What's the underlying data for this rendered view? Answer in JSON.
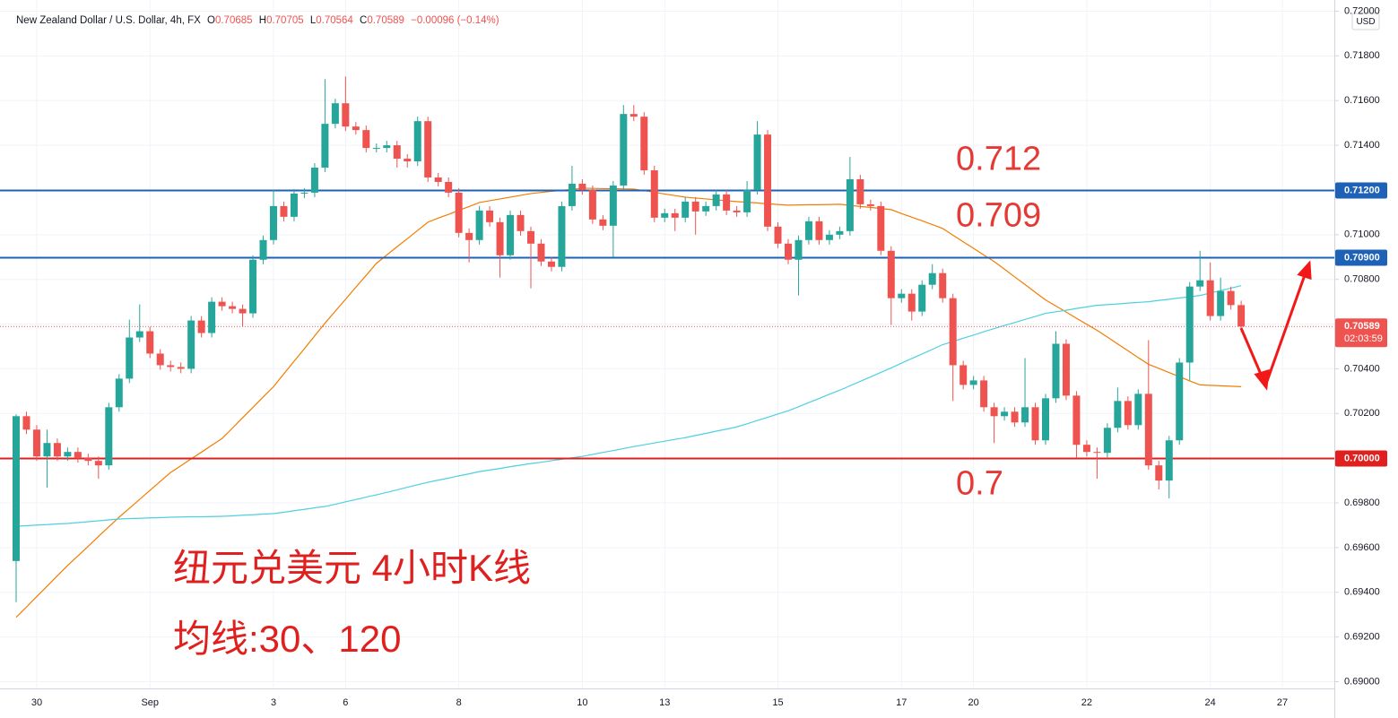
{
  "chart_data": {
    "type": "candlestick",
    "title": "New Zealand Dollar / U.S. Dollar, 4h, FX",
    "legend_values": [
      {
        "label": "O",
        "value": 0.70685
      },
      {
        "label": "H",
        "value": 0.70705
      },
      {
        "label": "L",
        "value": 0.70564
      },
      {
        "label": "C",
        "value": 0.70589
      }
    ],
    "change_label": "−0.00096 (−0.14%)",
    "currency": "USD",
    "countdown": "02:03:59",
    "up_color": "#26a69a",
    "down_color": "#ef5350",
    "grid": true,
    "ylim": [
      0.6897,
      0.7205
    ],
    "yticks": [
      {
        "value": 0.72,
        "label": "0.72000"
      },
      {
        "value": 0.718,
        "label": "0.71800"
      },
      {
        "value": 0.716,
        "label": "0.71600"
      },
      {
        "value": 0.714,
        "label": "0.71400"
      },
      {
        "value": 0.712,
        "label": "0.71200"
      },
      {
        "value": 0.71,
        "label": "0.71000"
      },
      {
        "value": 0.708,
        "label": "0.70800"
      },
      {
        "value": 0.706,
        "label": "0.70600"
      },
      {
        "value": 0.704,
        "label": "0.70400"
      },
      {
        "value": 0.702,
        "label": "0.70200"
      },
      {
        "value": 0.7,
        "label": "0.70000"
      },
      {
        "value": 0.698,
        "label": "0.69800"
      },
      {
        "value": 0.696,
        "label": "0.69600"
      },
      {
        "value": 0.694,
        "label": "0.69400"
      },
      {
        "value": 0.692,
        "label": "0.69200"
      },
      {
        "value": 0.69,
        "label": "0.69000"
      }
    ],
    "levels": [
      {
        "value": 0.712,
        "label": "0.71200",
        "annotation": "0.712",
        "color": "#1e62b8"
      },
      {
        "value": 0.709,
        "label": "0.70900",
        "annotation": "0.709",
        "color": "#1e62b8"
      },
      {
        "value": 0.7,
        "label": "0.70000",
        "annotation": "0.7",
        "color": "#e01f1f"
      }
    ],
    "annotations": [
      "纽元兑美元 4小时K线",
      "均线:30、120"
    ],
    "categories": [
      null,
      null,
      "30",
      null,
      null,
      null,
      null,
      null,
      null,
      null,
      null,
      null,
      null,
      "Sep",
      null,
      null,
      null,
      null,
      null,
      null,
      null,
      null,
      null,
      null,
      null,
      "3",
      null,
      null,
      null,
      null,
      null,
      null,
      "6",
      null,
      null,
      null,
      null,
      null,
      null,
      null,
      null,
      null,
      null,
      "8",
      null,
      null,
      null,
      null,
      null,
      null,
      null,
      null,
      null,
      null,
      null,
      "10",
      null,
      null,
      null,
      null,
      null,
      null,
      null,
      "13",
      null,
      null,
      null,
      null,
      null,
      null,
      null,
      null,
      null,
      null,
      "15",
      null,
      null,
      null,
      null,
      null,
      null,
      null,
      null,
      null,
      null,
      null,
      "17",
      null,
      null,
      null,
      null,
      null,
      null,
      "20",
      null,
      null,
      null,
      null,
      null,
      null,
      null,
      null,
      null,
      null,
      "22",
      null,
      null,
      null,
      null,
      null,
      null,
      null,
      null,
      null,
      null,
      null,
      "24",
      null,
      null,
      null,
      null,
      null,
      null,
      "27",
      null,
      null,
      null,
      null
    ],
    "open": [
      0.6954,
      0.70188,
      0.70128,
      0.70008,
      0.70068,
      0.70008,
      0.70028,
      0.7,
      0.69988,
      0.69968,
      0.70228,
      0.70356,
      0.7054,
      0.70568,
      0.70468,
      0.70416,
      0.70408,
      0.704,
      0.70616,
      0.7056,
      0.707,
      0.7068,
      0.70668,
      0.70648,
      0.70888,
      0.70976,
      0.71128,
      0.7108,
      0.71184,
      0.71188,
      0.713,
      0.71496,
      0.71588,
      0.71484,
      0.71468,
      0.71388,
      0.71388,
      0.714,
      0.7134,
      0.71328,
      0.71508,
      0.71256,
      0.71236,
      0.71188,
      0.71008,
      0.70976,
      0.71108,
      0.71056,
      0.70908,
      0.71088,
      0.71016,
      0.7096,
      0.7088,
      0.70856,
      0.71128,
      0.71228,
      0.712,
      0.71068,
      0.7104,
      0.7122,
      0.7154,
      0.71528,
      0.71288,
      0.71076,
      0.71096,
      0.71076,
      0.71148,
      0.71104,
      0.71128,
      0.7118,
      0.71108,
      0.711,
      0.712,
      0.71448,
      0.71036,
      0.7096,
      0.70888,
      0.70976,
      0.7106,
      0.70976,
      0.71,
      0.71016,
      0.71248,
      0.71136,
      0.71128,
      0.70928,
      0.70716,
      0.70736,
      0.70656,
      0.70776,
      0.70828,
      0.70716,
      0.70416,
      0.70328,
      0.70348,
      0.70228,
      0.70188,
      0.70208,
      0.7016,
      0.70228,
      0.7008,
      0.70268,
      0.70512,
      0.7028,
      0.7006,
      0.70028,
      0.70024,
      0.70136,
      0.70256,
      0.70148,
      0.70288,
      0.69968,
      0.699,
      0.7008,
      0.70428,
      0.70768,
      0.70796,
      0.70636,
      0.70748,
      0.70685,
      null,
      null,
      null,
      null,
      null,
      null,
      null,
      null
    ],
    "high": [
      0.70196,
      0.70208,
      0.70148,
      0.70128,
      0.70088,
      0.70048,
      0.70048,
      0.7002,
      0.70008,
      0.70248,
      0.70376,
      0.7062,
      0.70688,
      0.70588,
      0.70488,
      0.70436,
      0.70428,
      0.70636,
      0.70636,
      0.7072,
      0.7072,
      0.707,
      0.70688,
      0.70908,
      0.70996,
      0.712,
      0.71148,
      0.71204,
      0.71208,
      0.7132,
      0.71696,
      0.71608,
      0.71708,
      0.71504,
      0.71488,
      0.71408,
      0.7142,
      0.7142,
      0.7136,
      0.71528,
      0.71528,
      0.71276,
      0.71256,
      0.71208,
      0.71028,
      0.71128,
      0.71128,
      0.71076,
      0.71108,
      0.71108,
      0.71036,
      0.7098,
      0.709,
      0.71148,
      0.71308,
      0.71248,
      0.7122,
      0.71088,
      0.7124,
      0.7158,
      0.7158,
      0.71548,
      0.71308,
      0.71116,
      0.71116,
      0.71168,
      0.71168,
      0.71148,
      0.712,
      0.712,
      0.71128,
      0.7124,
      0.71508,
      0.71468,
      0.71056,
      0.7098,
      0.70996,
      0.7108,
      0.7108,
      0.7102,
      0.71036,
      0.71348,
      0.71268,
      0.71156,
      0.71148,
      0.70948,
      0.70756,
      0.70756,
      0.70796,
      0.70868,
      0.70848,
      0.70736,
      0.70436,
      0.70368,
      0.70368,
      0.70248,
      0.70228,
      0.70228,
      0.70448,
      0.70248,
      0.70288,
      0.70568,
      0.70532,
      0.703,
      0.7008,
      0.70048,
      0.70156,
      0.70316,
      0.70276,
      0.70308,
      0.70528,
      0.69988,
      0.701,
      0.70448,
      0.70788,
      0.70928,
      0.70876,
      0.70808,
      0.70768,
      0.70705,
      null,
      null,
      null,
      null,
      null,
      null,
      null,
      null
    ],
    "low": [
      0.69356,
      0.70108,
      0.69988,
      0.69868,
      0.69988,
      0.69988,
      0.6998,
      0.69968,
      0.69908,
      0.69948,
      0.70208,
      0.70336,
      0.7052,
      0.70448,
      0.70396,
      0.70388,
      0.7038,
      0.7038,
      0.7054,
      0.7054,
      0.7066,
      0.70648,
      0.70588,
      0.70628,
      0.70868,
      0.70956,
      0.7106,
      0.7106,
      0.71164,
      0.71168,
      0.7128,
      0.71476,
      0.71464,
      0.71448,
      0.71368,
      0.71368,
      0.71368,
      0.713,
      0.713,
      0.71308,
      0.71236,
      0.71216,
      0.71168,
      0.70988,
      0.70876,
      0.70956,
      0.71036,
      0.70808,
      0.70888,
      0.70996,
      0.7076,
      0.7086,
      0.70836,
      0.70836,
      0.71108,
      0.7118,
      0.71048,
      0.7102,
      0.709,
      0.712,
      0.71508,
      0.71268,
      0.71056,
      0.71056,
      0.71016,
      0.71056,
      0.71,
      0.71084,
      0.71108,
      0.71088,
      0.7108,
      0.7108,
      0.7118,
      0.71016,
      0.7094,
      0.70868,
      0.70728,
      0.70956,
      0.70956,
      0.70956,
      0.7098,
      0.70996,
      0.71116,
      0.71108,
      0.70908,
      0.70596,
      0.70696,
      0.70616,
      0.70636,
      0.70756,
      0.70696,
      0.70256,
      0.70308,
      0.70308,
      0.70208,
      0.70068,
      0.70168,
      0.7014,
      0.7014,
      0.7006,
      0.7006,
      0.70248,
      0.7026,
      0.7,
      0.70008,
      0.69908,
      0.70004,
      0.70116,
      0.70128,
      0.70128,
      0.69948,
      0.6986,
      0.6982,
      0.7006,
      0.70348,
      0.70748,
      0.70616,
      0.70616,
      0.70665,
      0.70564,
      null,
      null,
      null,
      null,
      null,
      null,
      null,
      null
    ],
    "close": [
      0.70188,
      0.70128,
      0.70008,
      0.70068,
      0.70008,
      0.70028,
      0.7,
      0.69988,
      0.69968,
      0.70228,
      0.70356,
      0.7054,
      0.70568,
      0.70468,
      0.70416,
      0.70408,
      0.704,
      0.70616,
      0.7056,
      0.707,
      0.7068,
      0.70668,
      0.70648,
      0.70888,
      0.70976,
      0.71128,
      0.7108,
      0.71184,
      0.71188,
      0.713,
      0.71496,
      0.71588,
      0.71484,
      0.71468,
      0.71388,
      0.71388,
      0.714,
      0.7134,
      0.71328,
      0.71508,
      0.71256,
      0.71236,
      0.71188,
      0.71008,
      0.70976,
      0.71108,
      0.71056,
      0.70908,
      0.71088,
      0.71016,
      0.7096,
      0.7088,
      0.70856,
      0.71128,
      0.71228,
      0.712,
      0.71068,
      0.7104,
      0.7122,
      0.7154,
      0.71528,
      0.71288,
      0.71076,
      0.71096,
      0.71076,
      0.71148,
      0.71104,
      0.71128,
      0.7118,
      0.71108,
      0.711,
      0.712,
      0.71448,
      0.71036,
      0.7096,
      0.70888,
      0.70976,
      0.7106,
      0.70976,
      0.71,
      0.71016,
      0.71248,
      0.71136,
      0.71128,
      0.70928,
      0.70716,
      0.70736,
      0.70656,
      0.70776,
      0.70828,
      0.70716,
      0.70416,
      0.70328,
      0.70348,
      0.70228,
      0.70188,
      0.70208,
      0.7016,
      0.70228,
      0.7008,
      0.70268,
      0.70512,
      0.7028,
      0.7006,
      0.70028,
      0.70024,
      0.70136,
      0.70256,
      0.70148,
      0.70288,
      0.69968,
      0.699,
      0.7008,
      0.70428,
      0.70768,
      0.70796,
      0.70636,
      0.70748,
      0.70685,
      0.70589,
      null,
      null,
      null,
      null,
      null,
      null,
      null,
      null
    ],
    "moving_averages": [
      {
        "color": "#f57c00",
        "values": [
          0.69288,
          0.69334,
          0.69381,
          0.69427,
          0.69474,
          0.6952,
          0.69563,
          0.69606,
          0.6965,
          0.69693,
          0.69736,
          0.69776,
          0.69816,
          0.69856,
          0.69896,
          0.69936,
          0.69966,
          0.69997,
          0.70027,
          0.70058,
          0.70088,
          0.70134,
          0.70181,
          0.70227,
          0.70274,
          0.7032,
          0.70377,
          0.70434,
          0.7049,
          0.70547,
          0.70604,
          0.70658,
          0.70711,
          0.70765,
          0.70818,
          0.70872,
          0.70909,
          0.70946,
          0.70982,
          0.71019,
          0.71056,
          0.71074,
          0.71091,
          0.71109,
          0.71126,
          0.71144,
          0.71152,
          0.7116,
          0.71168,
          0.71176,
          0.71184,
          0.71189,
          0.71194,
          0.71198,
          0.71203,
          0.71208,
          0.71207,
          0.71206,
          0.71206,
          0.71205,
          0.71204,
          0.71197,
          0.7119,
          0.71182,
          0.71175,
          0.71168,
          0.71164,
          0.7116,
          0.71156,
          0.71152,
          0.71148,
          0.71145,
          0.71142,
          0.71138,
          0.71135,
          0.71132,
          0.71133,
          0.71134,
          0.71134,
          0.71135,
          0.71136,
          0.71131,
          0.71126,
          0.71122,
          0.71117,
          0.71112,
          0.71095,
          0.71078,
          0.71062,
          0.71045,
          0.71028,
          0.70998,
          0.70968,
          0.70939,
          0.70909,
          0.7088,
          0.70846,
          0.70811,
          0.70777,
          0.70742,
          0.70708,
          0.70681,
          0.70654,
          0.70626,
          0.70599,
          0.70572,
          0.70542,
          0.70511,
          0.70481,
          0.7045,
          0.7042,
          0.70402,
          0.70383,
          0.70365,
          0.70346,
          0.70328,
          0.70326,
          0.70324,
          0.70322,
          0.7032,
          null,
          null,
          null,
          null,
          null,
          null,
          null,
          null
        ]
      },
      {
        "color": "#4dd0e1",
        "values": [
          0.69696,
          0.69698,
          0.69701,
          0.69703,
          0.69706,
          0.69708,
          0.69712,
          0.69716,
          0.6972,
          0.69724,
          0.69728,
          0.6973,
          0.69731,
          0.69733,
          0.69734,
          0.69736,
          0.69737,
          0.69738,
          0.69738,
          0.69739,
          0.6974,
          0.69742,
          0.69745,
          0.69747,
          0.6975,
          0.69752,
          0.69758,
          0.69765,
          0.69771,
          0.69778,
          0.69784,
          0.69794,
          0.69805,
          0.69815,
          0.69826,
          0.69836,
          0.69847,
          0.69858,
          0.6987,
          0.69881,
          0.69892,
          0.69902,
          0.69911,
          0.69921,
          0.6993,
          0.6994,
          0.69947,
          0.69954,
          0.69962,
          0.69969,
          0.69976,
          0.69982,
          0.69989,
          0.69995,
          0.70002,
          0.70008,
          0.70017,
          0.70026,
          0.70034,
          0.70043,
          0.70052,
          0.7006,
          0.70068,
          0.70076,
          0.70084,
          0.70092,
          0.70102,
          0.70111,
          0.70121,
          0.7013,
          0.7014,
          0.70154,
          0.70169,
          0.70183,
          0.70198,
          0.70212,
          0.7023,
          0.70249,
          0.70267,
          0.70286,
          0.70304,
          0.70324,
          0.70344,
          0.70364,
          0.70384,
          0.70404,
          0.70425,
          0.70446,
          0.70466,
          0.70487,
          0.70508,
          0.70522,
          0.70537,
          0.70551,
          0.70566,
          0.7058,
          0.70594,
          0.70607,
          0.70621,
          0.70634,
          0.70648,
          0.70655,
          0.70662,
          0.7067,
          0.70677,
          0.70684,
          0.70687,
          0.7069,
          0.70694,
          0.70697,
          0.707,
          0.70706,
          0.70711,
          0.70717,
          0.70722,
          0.70728,
          0.70739,
          0.7075,
          0.70761,
          0.70772,
          null,
          null,
          null,
          null,
          null,
          null,
          null,
          null
        ]
      }
    ]
  }
}
